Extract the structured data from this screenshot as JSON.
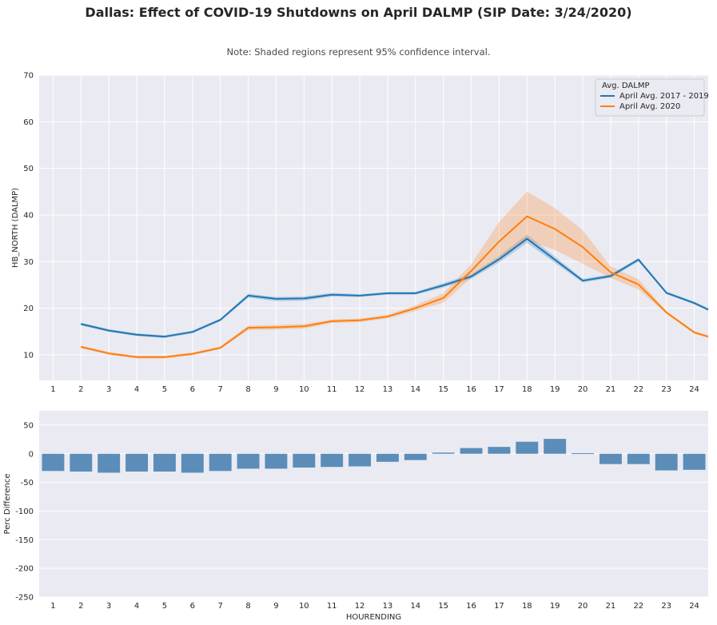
{
  "figure": {
    "title": "Dallas: Effect of COVID-19 Shutdowns on April DALMP (SIP Date: 3/24/2020)",
    "note": "Note: Shaded regions represent 95% confidence interval.",
    "background": "#eaeaf2",
    "grid_color": "#ffffff"
  },
  "chart_data": [
    {
      "type": "line",
      "title": "",
      "xlabel": "",
      "ylabel": "HB_NORTH (DALMP)",
      "x": [
        1,
        2,
        3,
        4,
        5,
        6,
        7,
        8,
        9,
        10,
        11,
        12,
        13,
        14,
        15,
        16,
        17,
        18,
        19,
        20,
        21,
        22,
        23,
        24
      ],
      "xlim": [
        0.5,
        24.5
      ],
      "ylim": [
        4.5,
        70
      ],
      "yticks": [
        10,
        20,
        30,
        40,
        50,
        60,
        70
      ],
      "grid": true,
      "legend": {
        "title": "Avg. DALMP",
        "placement": "top-right"
      },
      "series": [
        {
          "name": "April Avg. 2017 - 2019",
          "color": "#1f77b4",
          "x": [
            2,
            3,
            4,
            5,
            6,
            7,
            8,
            9,
            10,
            11,
            12,
            13,
            14,
            15,
            16,
            17,
            18,
            19,
            20,
            21,
            22,
            23,
            24,
            24.5
          ],
          "values": [
            16.6,
            15.2,
            14.3,
            13.9,
            14.9,
            17.5,
            22.7,
            22.0,
            22.1,
            22.9,
            22.7,
            23.2,
            23.2,
            24.9,
            26.8,
            30.5,
            34.9,
            30.4,
            25.9,
            26.9,
            30.4,
            23.3,
            21.1,
            19.7
          ],
          "ci_lower": [
            16.3,
            14.9,
            14.0,
            13.6,
            14.6,
            17.2,
            22.3,
            21.5,
            21.6,
            22.5,
            22.4,
            22.9,
            22.9,
            24.4,
            26.3,
            29.8,
            34.0,
            29.7,
            25.5,
            26.5,
            30.0,
            23.0,
            20.8,
            19.4
          ],
          "ci_upper": [
            16.9,
            15.5,
            14.6,
            14.2,
            15.2,
            17.8,
            23.1,
            22.4,
            22.5,
            23.3,
            23.0,
            23.5,
            23.5,
            25.4,
            27.3,
            31.2,
            35.8,
            31.1,
            26.3,
            27.3,
            30.8,
            23.6,
            21.4,
            20.0
          ]
        },
        {
          "name": "April Avg. 2020",
          "color": "#ff7f0e",
          "x": [
            2,
            3,
            4,
            5,
            6,
            7,
            8,
            9,
            10,
            11,
            12,
            13,
            14,
            15,
            16,
            17,
            18,
            19,
            20,
            21,
            22,
            23,
            24,
            24.5
          ],
          "values": [
            11.7,
            10.3,
            9.5,
            9.5,
            10.2,
            11.5,
            15.8,
            15.9,
            16.1,
            17.2,
            17.4,
            18.2,
            20.0,
            22.2,
            28.0,
            34.3,
            39.7,
            37.0,
            33.1,
            27.7,
            25.1,
            19.1,
            14.8,
            13.9
          ],
          "ci_lower": [
            11.4,
            10.0,
            9.2,
            9.2,
            9.9,
            11.2,
            15.3,
            15.4,
            15.6,
            16.8,
            17.0,
            17.8,
            19.4,
            21.2,
            26.5,
            30.5,
            34.5,
            32.5,
            29.5,
            26.5,
            24.0,
            18.8,
            14.5,
            13.6
          ],
          "ci_upper": [
            12.0,
            10.6,
            9.8,
            9.8,
            10.5,
            11.8,
            16.3,
            16.4,
            16.6,
            17.6,
            17.8,
            18.6,
            20.6,
            23.2,
            29.5,
            38.5,
            45.0,
            41.5,
            36.7,
            29.0,
            26.2,
            19.4,
            15.1,
            14.2
          ]
        }
      ]
    },
    {
      "type": "bar",
      "title": "",
      "xlabel": "HOURENDING",
      "ylabel": "Perc Difference",
      "categories": [
        "1",
        "2",
        "3",
        "4",
        "5",
        "6",
        "7",
        "8",
        "9",
        "10",
        "11",
        "12",
        "13",
        "14",
        "15",
        "16",
        "17",
        "18",
        "19",
        "20",
        "21",
        "22",
        "23",
        "24"
      ],
      "values": [
        -30,
        -31,
        -33,
        -31,
        -31,
        -33,
        -30,
        -26,
        -26,
        -24,
        -23,
        -22,
        -14,
        -11,
        2,
        10,
        12,
        21,
        26,
        1,
        -18,
        -18,
        -29,
        -28
      ],
      "ylim": [
        -250,
        75
      ],
      "yticks": [
        50,
        0,
        -50,
        -100,
        -150,
        -200,
        -250
      ],
      "grid": true,
      "bar_color": "#5b8db8"
    }
  ]
}
